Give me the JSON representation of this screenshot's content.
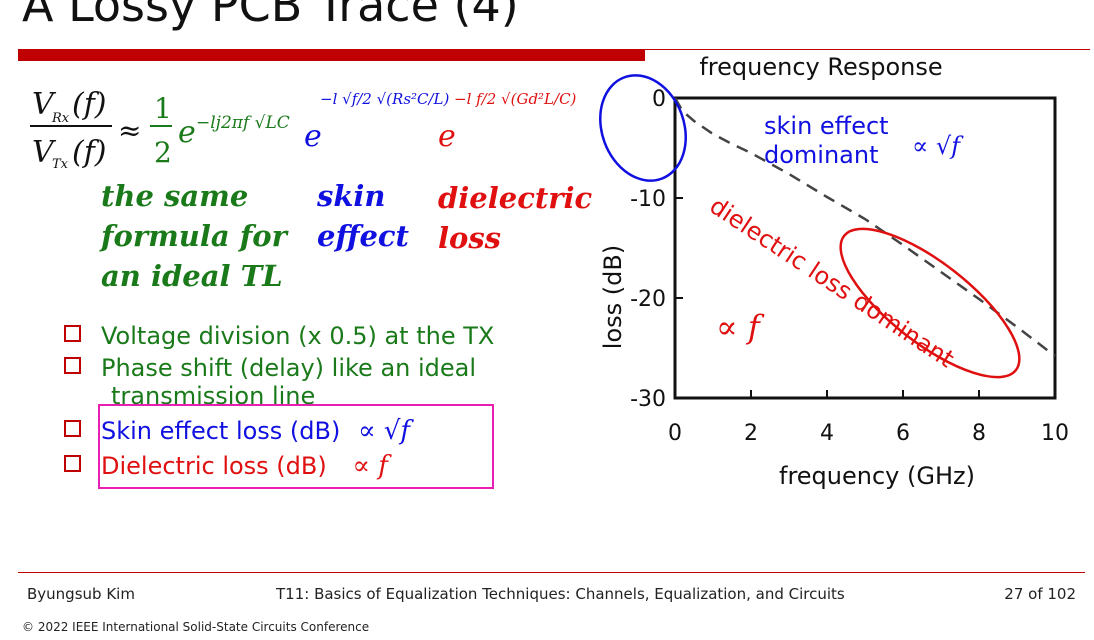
{
  "title": "A Lossy PCB Trace (4)",
  "formula": {
    "num": "V",
    "num_sub": "Rx",
    "num_arg": "(f)",
    "den": "V",
    "den_sub": "Tx",
    "den_arg": "(f)",
    "approx": "≈",
    "half_num": "1",
    "half_den": "2",
    "term1_base": "e",
    "term1_exp": "−lj2πf √LC",
    "term2_base": "e",
    "term2_exp": "−l √f/2 √(Rs²C/L)",
    "term3_base": "e",
    "term3_exp": "−l f/2 √(Gd²L/C)"
  },
  "notes": {
    "green": [
      "the same",
      "formula for",
      "an ideal TL"
    ],
    "blue": [
      "skin",
      "effect"
    ],
    "red": [
      "dielectric",
      "loss"
    ]
  },
  "bullets": [
    {
      "text": "Voltage division (x 0.5) at the TX",
      "color": "#1a7a1a"
    },
    {
      "text": "Phase shift (delay) like an ideal",
      "color": "#1a7a1a"
    },
    {
      "text": "transmission line",
      "color": "#1a7a1a"
    },
    {
      "text": "Skin effect loss (dB)",
      "suffix": "∝ √f",
      "color": "#1010e0"
    },
    {
      "text": "Dielectric loss (dB)",
      "suffix": "∝ f",
      "color": "#e01010"
    }
  ],
  "chart_data": {
    "type": "line",
    "title": "frequency Response",
    "xlabel": "frequency (GHz)",
    "ylabel": "loss (dB)",
    "xlim": [
      0,
      10
    ],
    "ylim": [
      -30,
      0
    ],
    "xticks": [
      "0",
      "2",
      "4",
      "6",
      "8",
      "10"
    ],
    "yticks": [
      "0",
      "-10",
      "-20",
      "-30"
    ],
    "x": [
      0,
      0.2,
      0.5,
      1,
      1.5,
      2,
      3,
      4,
      5,
      6,
      7,
      8,
      9,
      10
    ],
    "y": [
      0,
      -1.3,
      -2.3,
      -3.6,
      -4.6,
      -5.5,
      -7.6,
      -9.9,
      -12.1,
      -14.7,
      -17.4,
      -20.1,
      -22.9,
      -25.8
    ],
    "annotations": {
      "skin_label": [
        "skin effect",
        "dominant"
      ],
      "skin_prop": "∝ √f",
      "dielectric_label": "dielectric loss dominant",
      "dielectric_prop": "∝ f"
    },
    "colors": {
      "skin": "#1010e0",
      "dielectric": "#e01010",
      "curve": "#444444"
    }
  },
  "footer": {
    "author": "Byungsub Kim",
    "course": "T11: Basics of Equalization Techniques: Channels, Equalization, and Circuits",
    "page": "27 of 102",
    "copyright": "© 2022 IEEE International Solid-State Circuits Conference"
  }
}
